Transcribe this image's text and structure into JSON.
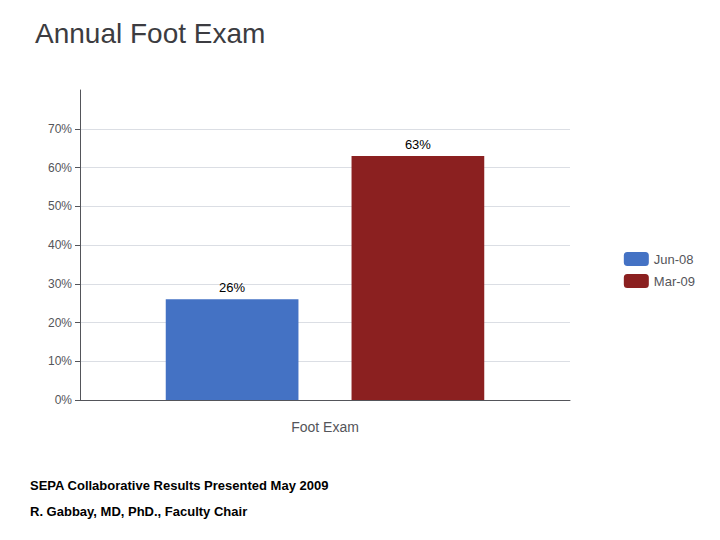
{
  "chart_data": {
    "type": "bar",
    "title": "Annual Foot Exam",
    "xlabel": "Foot Exam",
    "categories": [
      null
    ],
    "series": [
      {
        "name": "Jun-08",
        "color": "#4472C4",
        "values": [
          0.26
        ],
        "value_labels": [
          "26%"
        ]
      },
      {
        "name": "Mar-09",
        "color": "#8B2020",
        "values": [
          0.63
        ],
        "value_labels": [
          "63%"
        ]
      }
    ],
    "ylim": [
      0.0,
      0.8
    ],
    "yticks": [
      {
        "value": 0.0,
        "label": "0%"
      },
      {
        "value": 0.1,
        "label": "10%"
      },
      {
        "value": 0.2,
        "label": "20%"
      },
      {
        "value": 0.3,
        "label": "30%"
      },
      {
        "value": 0.4,
        "label": "40%"
      },
      {
        "value": 0.5,
        "label": "50%"
      },
      {
        "value": 0.6,
        "label": "60%"
      },
      {
        "value": 0.7,
        "label": "70%"
      }
    ],
    "grid": true,
    "legend": "right",
    "data_labels": true,
    "tick_labels": "y",
    "annotations": [
      "SEPA Collaborative Results Presented May 2009",
      "R. Gabbay, MD, PhD., Faculty Chair"
    ]
  }
}
